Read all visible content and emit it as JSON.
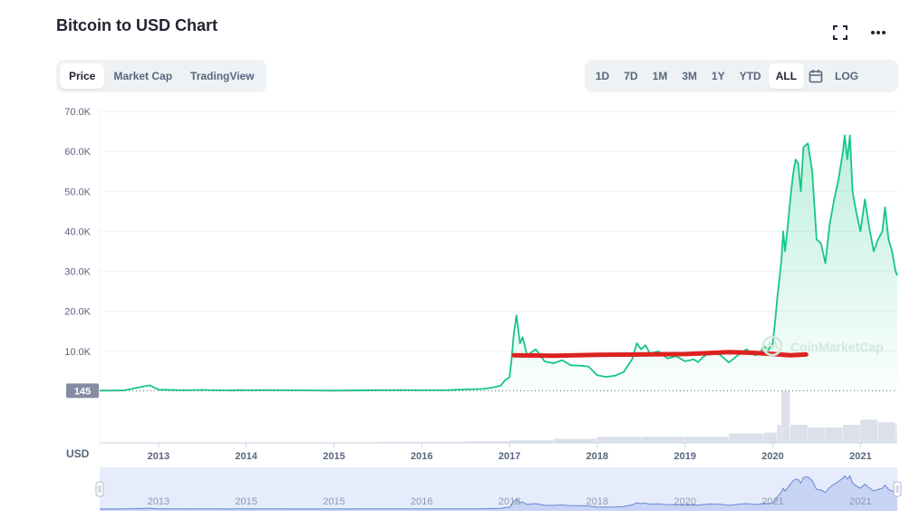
{
  "header": {
    "title": "Bitcoin to USD Chart",
    "fullscreen_icon": "expand-icon",
    "more_icon": "more-dots-icon"
  },
  "view_tabs": [
    {
      "label": "Price",
      "active": true
    },
    {
      "label": "Market Cap",
      "active": false
    },
    {
      "label": "TradingView",
      "active": false
    }
  ],
  "range_tabs": [
    {
      "label": "1D",
      "active": false
    },
    {
      "label": "7D",
      "active": false
    },
    {
      "label": "1M",
      "active": false
    },
    {
      "label": "3M",
      "active": false
    },
    {
      "label": "1Y",
      "active": false
    },
    {
      "label": "YTD",
      "active": false
    },
    {
      "label": "ALL",
      "active": true
    }
  ],
  "calendar_icon": "calendar-icon",
  "log_label": "LOG",
  "currency_label": "USD",
  "watermark": "CoinMarketCap",
  "colors": {
    "line": "#16c784",
    "fill": "#16c784",
    "annotation": "#dd2222",
    "navigator_line": "#6688cc",
    "navigator_bg": "#e6ecfb"
  },
  "chart_data": {
    "type": "area",
    "title": "Bitcoin to USD Chart",
    "xlabel": "",
    "ylabel": "USD",
    "xlim": [
      2012.33,
      2021.42
    ],
    "ylim": [
      0,
      70000
    ],
    "y_ticks": [
      "10.0K",
      "20.0K",
      "30.0K",
      "40.0K",
      "50.0K",
      "60.0K",
      "70.0K"
    ],
    "y_tick_values": [
      10000,
      20000,
      30000,
      40000,
      50000,
      60000,
      70000
    ],
    "x_ticks": [
      "2013",
      "2014",
      "2015",
      "2016",
      "2017",
      "2018",
      "2019",
      "2020",
      "2021"
    ],
    "x_tick_values": [
      2013,
      2014,
      2015,
      2016,
      2017,
      2018,
      2019,
      2020,
      2021
    ],
    "current_price_label": "145",
    "current_price_value": 145,
    "grid": true,
    "series": [
      {
        "name": "",
        "x": [
          2012.33,
          2012.6,
          2012.9,
          2013.0,
          2013.2,
          2013.3,
          2013.5,
          2013.8,
          2013.92,
          2014.0,
          2014.2,
          2014.5,
          2014.8,
          2015.0,
          2015.5,
          2015.8,
          2016.0,
          2016.3,
          2016.5,
          2016.7,
          2016.8,
          2016.9,
          2016.95,
          2017.0,
          2017.02,
          2017.05,
          2017.08,
          2017.12,
          2017.15,
          2017.2,
          2017.3,
          2017.4,
          2017.5,
          2017.6,
          2017.7,
          2017.8,
          2017.9,
          2018.0,
          2018.1,
          2018.2,
          2018.3,
          2018.4,
          2018.45,
          2018.5,
          2018.55,
          2018.6,
          2018.7,
          2018.8,
          2018.9,
          2019.0,
          2019.1,
          2019.15,
          2019.2,
          2019.3,
          2019.4,
          2019.5,
          2019.6,
          2019.7,
          2019.8,
          2019.85,
          2019.9,
          2019.95,
          2020.0,
          2020.03,
          2020.05,
          2020.08,
          2020.1,
          2020.12,
          2020.14,
          2020.17,
          2020.2,
          2020.23,
          2020.26,
          2020.29,
          2020.32,
          2020.35,
          2020.4,
          2020.45,
          2020.5,
          2020.55,
          2020.6,
          2020.65,
          2020.7,
          2020.75,
          2020.8,
          2020.82,
          2020.85,
          2020.88,
          2020.91,
          2020.95,
          2021.0,
          2021.05,
          2021.1,
          2021.15,
          2021.2,
          2021.25,
          2021.28,
          2021.32,
          2021.36,
          2021.4,
          2021.42
        ],
        "values": [
          150,
          200,
          1500,
          400,
          300,
          250,
          350,
          200,
          300,
          250,
          300,
          250,
          200,
          150,
          280,
          300,
          250,
          300,
          450,
          600,
          900,
          1400,
          2800,
          3500,
          7000,
          14500,
          19000,
          12000,
          13500,
          9000,
          10500,
          7500,
          7000,
          7800,
          6500,
          6400,
          6200,
          4000,
          3600,
          3900,
          4800,
          8100,
          12000,
          10500,
          11500,
          9500,
          10000,
          8200,
          8800,
          7500,
          8000,
          7300,
          8500,
          9800,
          9100,
          7200,
          9000,
          10500,
          9000,
          9300,
          11300,
          10300,
          12000,
          18000,
          23000,
          29000,
          33000,
          40000,
          35000,
          41000,
          48000,
          54000,
          58000,
          57000,
          50000,
          61000,
          62000,
          55000,
          38000,
          37000,
          32000,
          42000,
          48000,
          53000,
          60000,
          64000,
          58000,
          64000,
          50000,
          45000,
          40000,
          48000,
          41000,
          35000,
          38000,
          40000,
          46000,
          38000,
          35000,
          30000,
          29000
        ]
      },
      {
        "name": "",
        "x": [
          2017.05,
          2017.5,
          2018.0,
          2018.5,
          2019.0,
          2019.2,
          2019.5,
          2019.8,
          2020.0,
          2020.2,
          2020.38
        ],
        "values": [
          9000,
          8900,
          9100,
          9200,
          9300,
          9500,
          9800,
          9600,
          9300,
          9000,
          9200
        ]
      }
    ],
    "volume": {
      "x": [
        2012.4,
        2013.0,
        2013.5,
        2014.0,
        2014.5,
        2015.0,
        2015.5,
        2016.0,
        2016.5,
        2017.0,
        2017.5,
        2018.0,
        2018.5,
        2019.0,
        2019.5,
        2019.9,
        2020.05,
        2020.1,
        2020.2,
        2020.4,
        2020.6,
        2020.8,
        2021.0,
        2021.2,
        2021.4
      ],
      "values": [
        0.01,
        0.01,
        0.01,
        0.01,
        0.01,
        0.01,
        0.02,
        0.02,
        0.03,
        0.05,
        0.08,
        0.12,
        0.12,
        0.12,
        0.18,
        0.2,
        0.35,
        1.0,
        0.35,
        0.3,
        0.3,
        0.35,
        0.45,
        0.4,
        0.35
      ]
    },
    "navigator": {
      "x_ticks": [
        "2013",
        "2015",
        "2015",
        "2016",
        "2018",
        "2018",
        "2020",
        "2021",
        "2021"
      ]
    }
  }
}
